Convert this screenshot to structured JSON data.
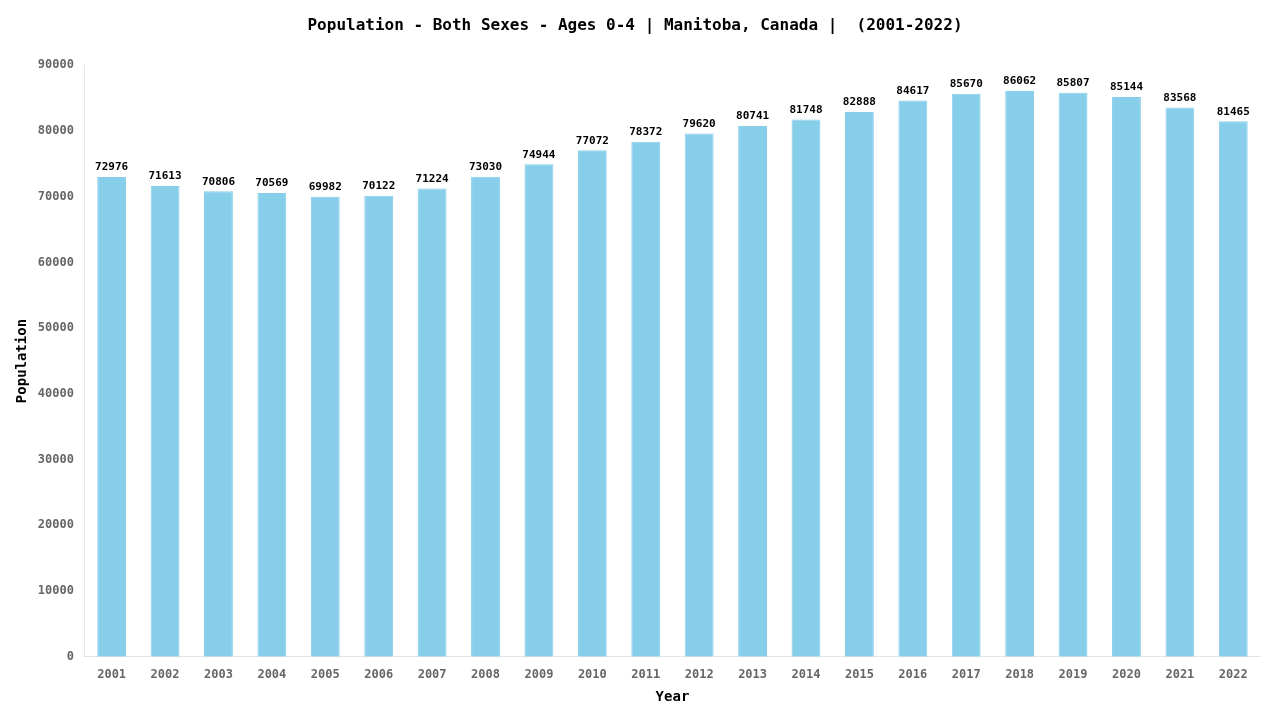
{
  "chart_data": {
    "type": "bar",
    "title": "Population - Both Sexes - Ages 0-4 | Manitoba, Canada |  (2001-2022)",
    "x_label": "Year",
    "y_label": "Population",
    "categories": [
      "2001",
      "2002",
      "2003",
      "2004",
      "2005",
      "2006",
      "2007",
      "2008",
      "2009",
      "2010",
      "2011",
      "2012",
      "2013",
      "2014",
      "2015",
      "2016",
      "2017",
      "2018",
      "2019",
      "2020",
      "2021",
      "2022"
    ],
    "values": [
      72976,
      71613,
      70806,
      70569,
      69982,
      70122,
      71224,
      73030,
      74944,
      77072,
      78372,
      79620,
      80741,
      81748,
      82888,
      84617,
      85670,
      86062,
      85807,
      85144,
      83568,
      81465
    ],
    "color": "#87CEEB",
    "ylim": [
      0,
      90000
    ],
    "yticks": [
      0,
      10000,
      20000,
      30000,
      40000,
      50000,
      60000,
      70000,
      80000,
      90000
    ],
    "grid": false,
    "data_labels": true
  }
}
